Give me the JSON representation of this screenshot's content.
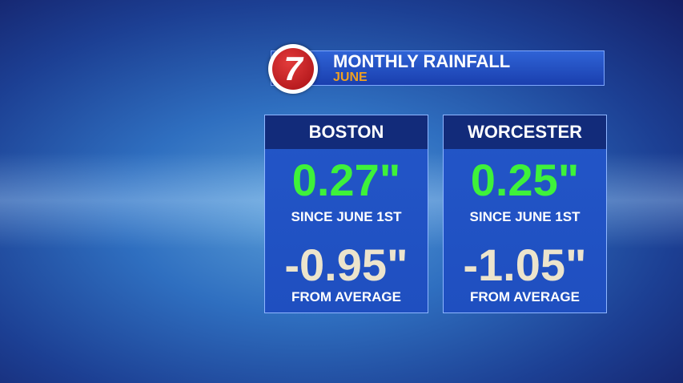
{
  "header": {
    "logo": "7",
    "title": "MONTHLY RAINFALL",
    "subtitle": "JUNE"
  },
  "cards": [
    {
      "city": "BOSTON",
      "total": "0.27\"",
      "total_label": "SINCE JUNE 1ST",
      "departure": "-0.95\"",
      "departure_label": "FROM AVERAGE"
    },
    {
      "city": "WORCESTER",
      "total": "0.25\"",
      "total_label": "SINCE JUNE 1ST",
      "departure": "-1.05\"",
      "departure_label": "FROM AVERAGE"
    }
  ]
}
